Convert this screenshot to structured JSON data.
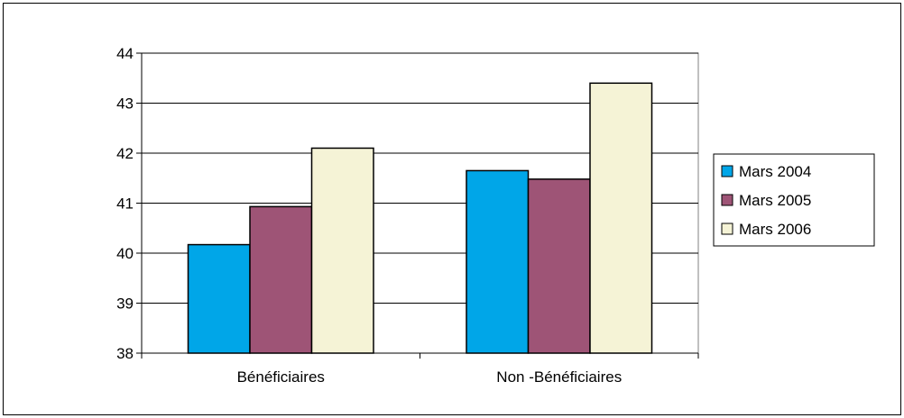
{
  "chart_data": {
    "type": "bar",
    "title": "",
    "xlabel": "",
    "ylabel": "",
    "categories": [
      "Bénéficiaires",
      "Non -Bénéficiaires"
    ],
    "series": [
      {
        "name": "Mars 2004",
        "values": [
          40.17,
          41.65
        ],
        "color": "#00a6e8"
      },
      {
        "name": "Mars 2005",
        "values": [
          40.93,
          41.48
        ],
        "color": "#9e5476"
      },
      {
        "name": "Mars 2006",
        "values": [
          42.1,
          43.4
        ],
        "color": "#f5f3d6"
      }
    ],
    "ylim": [
      38,
      44
    ],
    "yticks": [
      "38",
      "39",
      "40",
      "41",
      "42",
      "43",
      "44"
    ],
    "grid": true,
    "legend_position": "right"
  }
}
